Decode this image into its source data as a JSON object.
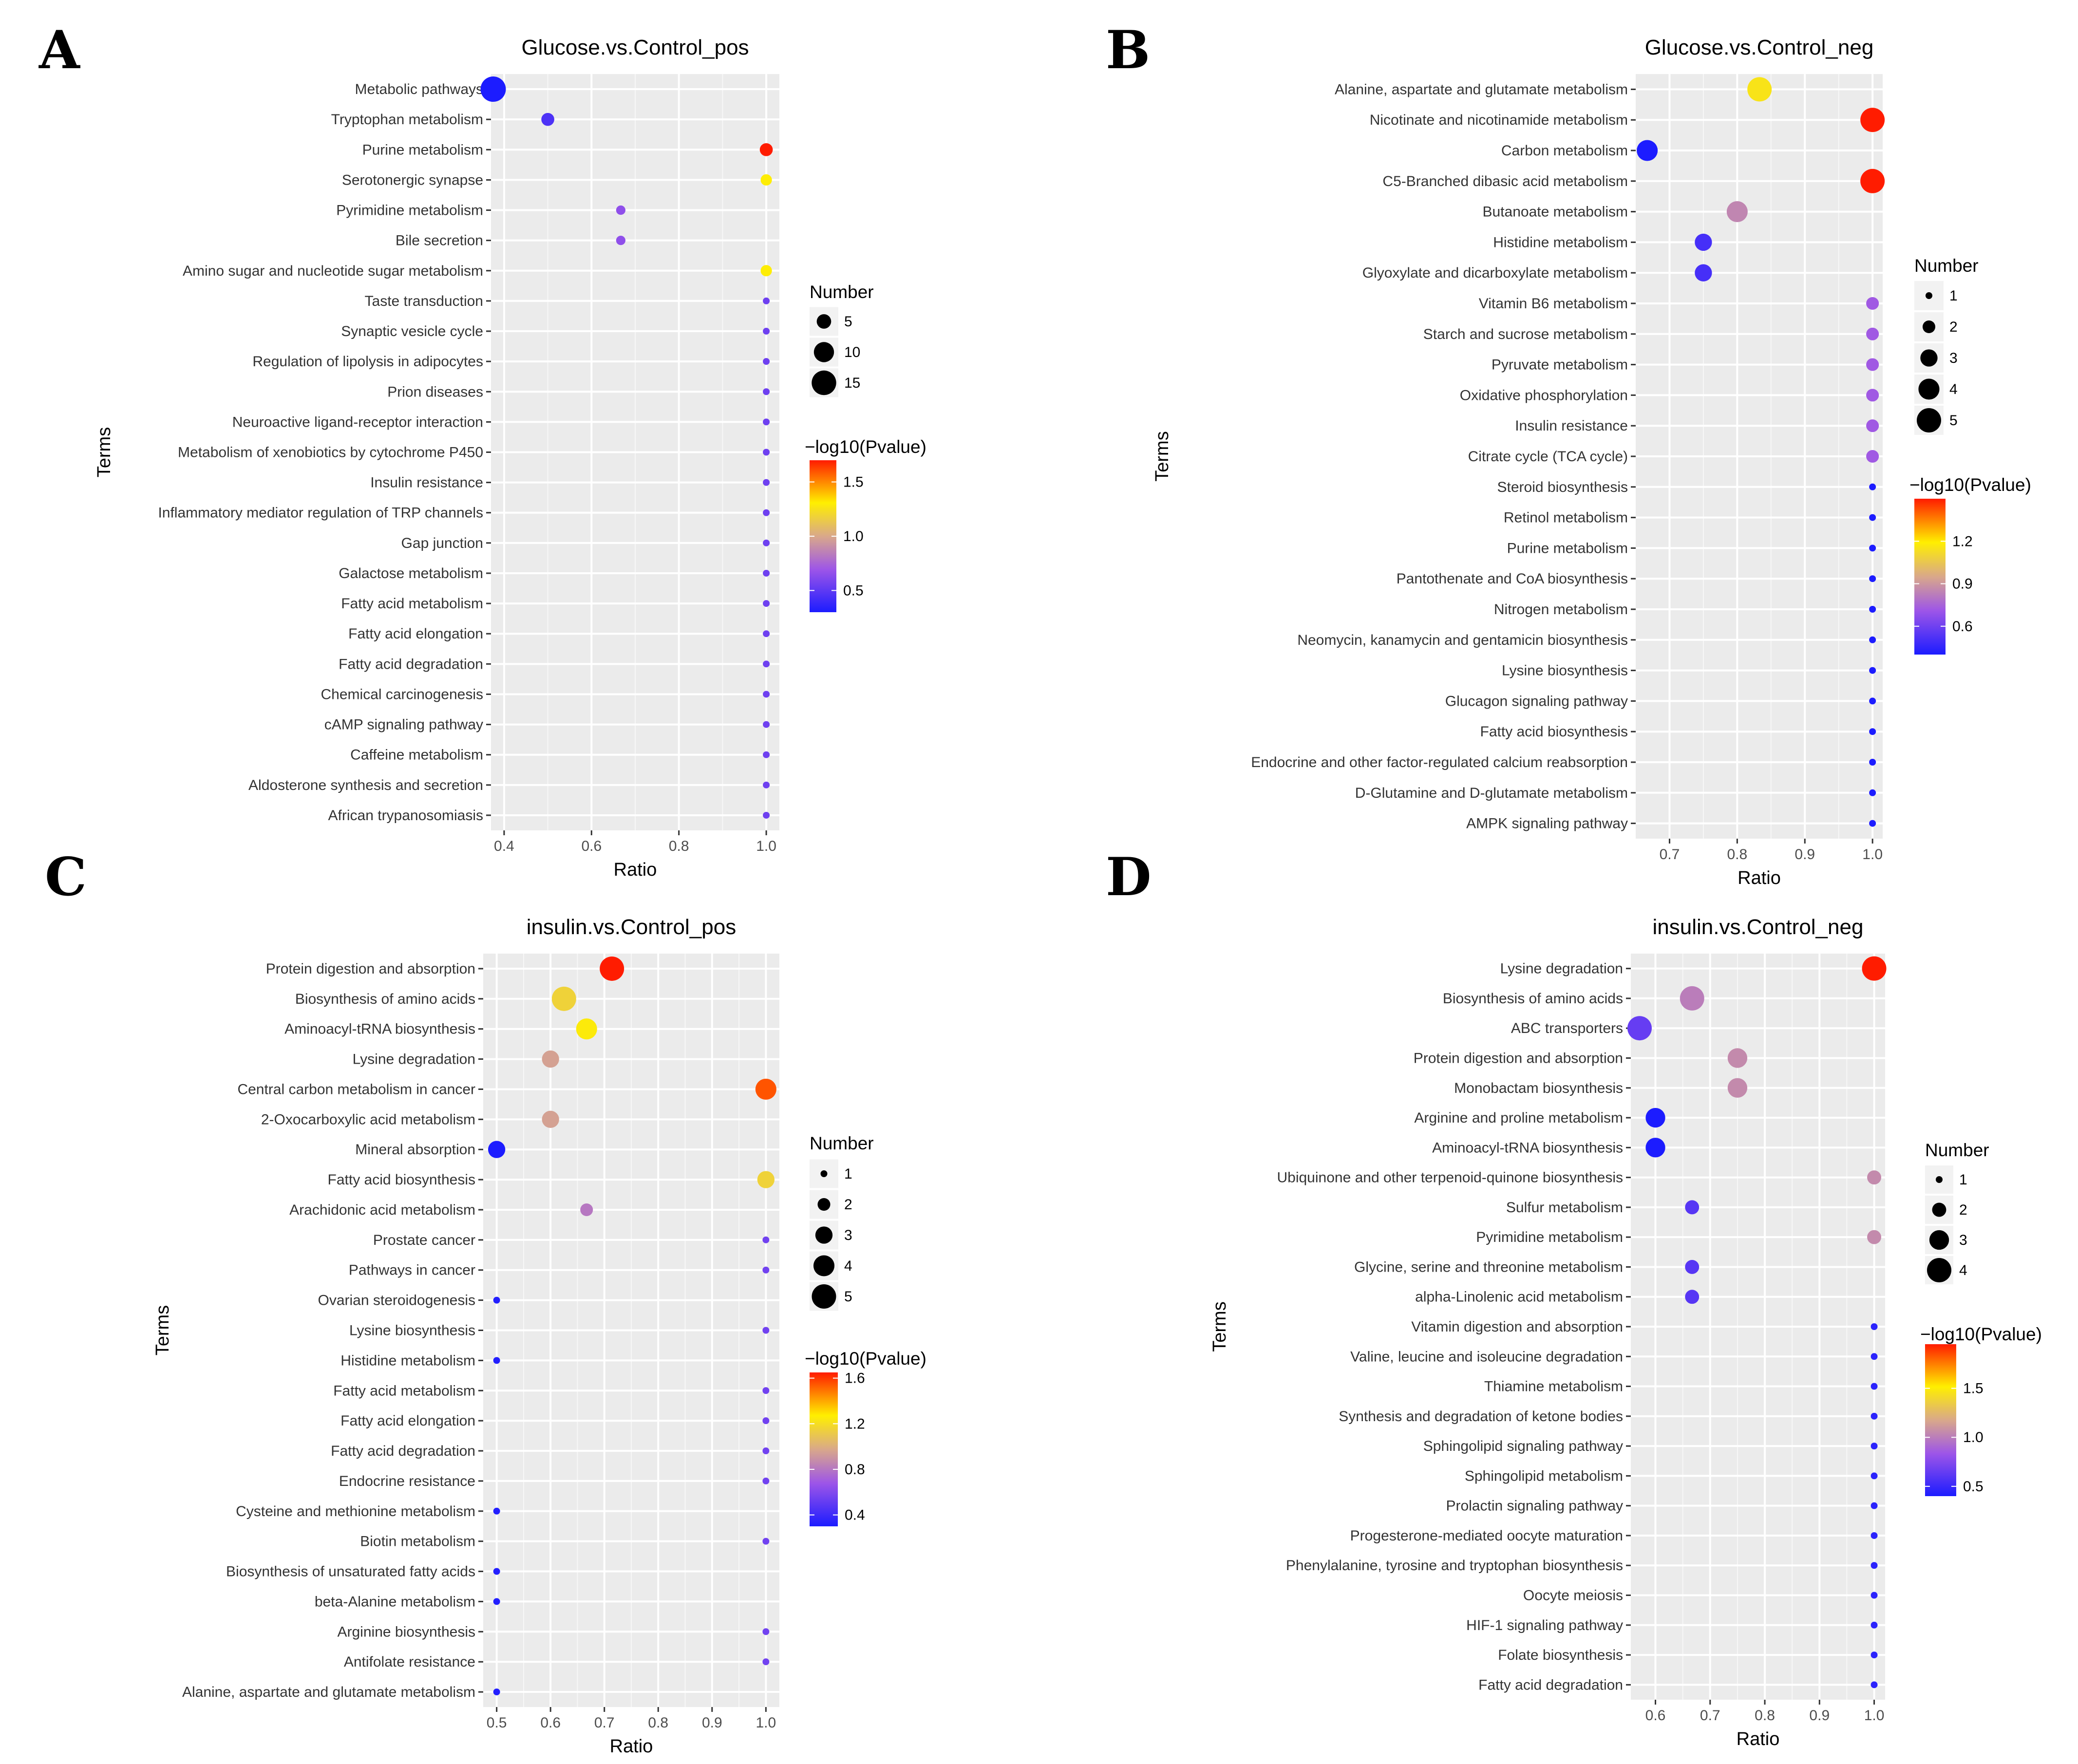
{
  "chart_data": [
    {
      "panel": "A",
      "type": "scatter",
      "title": "Glucose.vs.Control_pos",
      "xlabel": "Ratio",
      "ylabel": "Terms",
      "xlim": [
        0.37,
        1.03
      ],
      "xticks": [
        0.4,
        0.6,
        0.8,
        1.0
      ],
      "xtick_labels": [
        "0.4",
        "0.6",
        "0.8",
        "1.0"
      ],
      "size_legend": {
        "title": "Number",
        "values": [
          5,
          10,
          15
        ],
        "labels": [
          "5",
          "10",
          "15"
        ]
      },
      "color_legend": {
        "title": "−log10(Pvalue)",
        "min": 0.3,
        "max": 1.7,
        "ticks": [
          0.5,
          1.0,
          1.5
        ],
        "labels": [
          "0.5",
          "1.0",
          "1.5"
        ]
      },
      "points": [
        {
          "term": "Metabolic pathways",
          "ratio": 0.375,
          "number": 16,
          "logp": 0.3
        },
        {
          "term": "Tryptophan metabolism",
          "ratio": 0.5,
          "number": 4,
          "logp": 0.45
        },
        {
          "term": "Purine metabolism",
          "ratio": 1.0,
          "number": 4,
          "logp": 1.7
        },
        {
          "term": "Serotonergic synapse",
          "ratio": 1.0,
          "number": 3,
          "logp": 1.3
        },
        {
          "term": "Pyrimidine metabolism",
          "ratio": 0.667,
          "number": 2,
          "logp": 0.65
        },
        {
          "term": "Bile secretion",
          "ratio": 0.667,
          "number": 2,
          "logp": 0.65
        },
        {
          "term": "Amino sugar and nucleotide sugar metabolism",
          "ratio": 1.0,
          "number": 3,
          "logp": 1.3
        },
        {
          "term": "Taste transduction",
          "ratio": 1.0,
          "number": 1,
          "logp": 0.55
        },
        {
          "term": "Synaptic vesicle cycle",
          "ratio": 1.0,
          "number": 1,
          "logp": 0.55
        },
        {
          "term": "Regulation of lipolysis in adipocytes",
          "ratio": 1.0,
          "number": 1,
          "logp": 0.55
        },
        {
          "term": "Prion diseases",
          "ratio": 1.0,
          "number": 1,
          "logp": 0.55
        },
        {
          "term": "Neuroactive ligand-receptor interaction",
          "ratio": 1.0,
          "number": 1,
          "logp": 0.55
        },
        {
          "term": "Metabolism of xenobiotics by cytochrome P450",
          "ratio": 1.0,
          "number": 1,
          "logp": 0.55
        },
        {
          "term": "Insulin resistance",
          "ratio": 1.0,
          "number": 1,
          "logp": 0.55
        },
        {
          "term": "Inflammatory mediator regulation of TRP channels",
          "ratio": 1.0,
          "number": 1,
          "logp": 0.55
        },
        {
          "term": "Gap junction",
          "ratio": 1.0,
          "number": 1,
          "logp": 0.55
        },
        {
          "term": "Galactose metabolism",
          "ratio": 1.0,
          "number": 1,
          "logp": 0.55
        },
        {
          "term": "Fatty acid metabolism",
          "ratio": 1.0,
          "number": 1,
          "logp": 0.55
        },
        {
          "term": "Fatty acid elongation",
          "ratio": 1.0,
          "number": 1,
          "logp": 0.55
        },
        {
          "term": "Fatty acid degradation",
          "ratio": 1.0,
          "number": 1,
          "logp": 0.55
        },
        {
          "term": "Chemical carcinogenesis",
          "ratio": 1.0,
          "number": 1,
          "logp": 0.55
        },
        {
          "term": "cAMP signaling pathway",
          "ratio": 1.0,
          "number": 1,
          "logp": 0.55
        },
        {
          "term": "Caffeine metabolism",
          "ratio": 1.0,
          "number": 1,
          "logp": 0.55
        },
        {
          "term": "Aldosterone synthesis and secretion",
          "ratio": 1.0,
          "number": 1,
          "logp": 0.55
        },
        {
          "term": "African trypanosomiasis",
          "ratio": 1.0,
          "number": 1,
          "logp": 0.55
        }
      ]
    },
    {
      "panel": "B",
      "type": "scatter",
      "title": "Glucose.vs.Control_neg",
      "xlabel": "Ratio",
      "ylabel": "Terms",
      "xlim": [
        0.65,
        1.015
      ],
      "xticks": [
        0.7,
        0.8,
        0.9,
        1.0
      ],
      "xtick_labels": [
        "0.7",
        "0.8",
        "0.9",
        "1.0"
      ],
      "size_legend": {
        "title": "Number",
        "values": [
          1,
          2,
          3,
          4,
          5
        ],
        "labels": [
          "1",
          "2",
          "3",
          "4",
          "5"
        ]
      },
      "color_legend": {
        "title": "−log10(Pvalue)",
        "min": 0.4,
        "max": 1.5,
        "ticks": [
          0.6,
          0.9,
          1.2
        ],
        "labels": [
          "0.6",
          "0.9",
          "1.2"
        ]
      },
      "points": [
        {
          "term": "Alanine, aspartate and glutamate metabolism",
          "ratio": 0.833,
          "number": 5,
          "logp": 1.15
        },
        {
          "term": "Nicotinate and nicotinamide metabolism",
          "ratio": 1.0,
          "number": 5,
          "logp": 1.5
        },
        {
          "term": "Carbon metabolism",
          "ratio": 0.667,
          "number": 4,
          "logp": 0.4
        },
        {
          "term": "C5-Branched dibasic acid metabolism",
          "ratio": 1.0,
          "number": 5,
          "logp": 1.5
        },
        {
          "term": "Butanoate metabolism",
          "ratio": 0.8,
          "number": 4,
          "logp": 0.85
        },
        {
          "term": "Histidine metabolism",
          "ratio": 0.75,
          "number": 3,
          "logp": 0.5
        },
        {
          "term": "Glyoxylate and dicarboxylate metabolism",
          "ratio": 0.75,
          "number": 3,
          "logp": 0.5
        },
        {
          "term": "Vitamin B6 metabolism",
          "ratio": 1.0,
          "number": 2,
          "logp": 0.72
        },
        {
          "term": "Starch and sucrose metabolism",
          "ratio": 1.0,
          "number": 2,
          "logp": 0.72
        },
        {
          "term": "Pyruvate metabolism",
          "ratio": 1.0,
          "number": 2,
          "logp": 0.72
        },
        {
          "term": "Oxidative phosphorylation",
          "ratio": 1.0,
          "number": 2,
          "logp": 0.72
        },
        {
          "term": "Insulin resistance",
          "ratio": 1.0,
          "number": 2,
          "logp": 0.72
        },
        {
          "term": "Citrate cycle (TCA cycle)",
          "ratio": 1.0,
          "number": 2,
          "logp": 0.72
        },
        {
          "term": "Steroid biosynthesis",
          "ratio": 1.0,
          "number": 1,
          "logp": 0.4
        },
        {
          "term": "Retinol metabolism",
          "ratio": 1.0,
          "number": 1,
          "logp": 0.4
        },
        {
          "term": "Purine metabolism",
          "ratio": 1.0,
          "number": 1,
          "logp": 0.4
        },
        {
          "term": "Pantothenate and CoA biosynthesis",
          "ratio": 1.0,
          "number": 1,
          "logp": 0.4
        },
        {
          "term": "Nitrogen metabolism",
          "ratio": 1.0,
          "number": 1,
          "logp": 0.4
        },
        {
          "term": "Neomycin, kanamycin and gentamicin biosynthesis",
          "ratio": 1.0,
          "number": 1,
          "logp": 0.4
        },
        {
          "term": "Lysine biosynthesis",
          "ratio": 1.0,
          "number": 1,
          "logp": 0.4
        },
        {
          "term": "Glucagon signaling pathway",
          "ratio": 1.0,
          "number": 1,
          "logp": 0.4
        },
        {
          "term": "Fatty acid biosynthesis",
          "ratio": 1.0,
          "number": 1,
          "logp": 0.4
        },
        {
          "term": "Endocrine and other factor-regulated calcium reabsorption",
          "ratio": 1.0,
          "number": 1,
          "logp": 0.4
        },
        {
          "term": "D-Glutamine and D-glutamate metabolism",
          "ratio": 1.0,
          "number": 1,
          "logp": 0.4
        },
        {
          "term": "AMPK signaling pathway",
          "ratio": 1.0,
          "number": 1,
          "logp": 0.4
        }
      ]
    },
    {
      "panel": "C",
      "type": "scatter",
      "title": "insulin.vs.Control_pos",
      "xlabel": "Ratio",
      "ylabel": "Terms",
      "xlim": [
        0.475,
        1.025
      ],
      "xticks": [
        0.5,
        0.6,
        0.7,
        0.8,
        0.9,
        1.0
      ],
      "xtick_labels": [
        "0.5",
        "0.6",
        "0.7",
        "0.8",
        "0.9",
        "1.0"
      ],
      "size_legend": {
        "title": "Number",
        "values": [
          1,
          2,
          3,
          4,
          5
        ],
        "labels": [
          "1",
          "2",
          "3",
          "4",
          "5"
        ]
      },
      "color_legend": {
        "title": "−log10(Pvalue)",
        "min": 0.3,
        "max": 1.65,
        "ticks": [
          0.4,
          0.8,
          1.2,
          1.6
        ],
        "labels": [
          "0.4",
          "0.8",
          "1.2",
          "1.6"
        ]
      },
      "points": [
        {
          "term": "Protein digestion and absorption",
          "ratio": 0.714,
          "number": 5,
          "logp": 1.65
        },
        {
          "term": "Biosynthesis of amino acids",
          "ratio": 0.625,
          "number": 5,
          "logp": 1.15
        },
        {
          "term": "Aminoacyl-tRNA biosynthesis",
          "ratio": 0.667,
          "number": 4,
          "logp": 1.25
        },
        {
          "term": "Lysine degradation",
          "ratio": 0.6,
          "number": 3,
          "logp": 0.95
        },
        {
          "term": "Central carbon metabolism in cancer",
          "ratio": 1.0,
          "number": 4,
          "logp": 1.55
        },
        {
          "term": "2-Oxocarboxylic acid metabolism",
          "ratio": 0.6,
          "number": 3,
          "logp": 0.95
        },
        {
          "term": "Mineral absorption",
          "ratio": 0.5,
          "number": 3,
          "logp": 0.3
        },
        {
          "term": "Fatty acid biosynthesis",
          "ratio": 1.0,
          "number": 3,
          "logp": 1.15
        },
        {
          "term": "Arachidonic acid metabolism",
          "ratio": 0.667,
          "number": 2,
          "logp": 0.8
        },
        {
          "term": "Prostate cancer",
          "ratio": 1.0,
          "number": 1,
          "logp": 0.55
        },
        {
          "term": "Pathways in cancer",
          "ratio": 1.0,
          "number": 1,
          "logp": 0.55
        },
        {
          "term": "Ovarian steroidogenesis",
          "ratio": 0.5,
          "number": 1,
          "logp": 0.32
        },
        {
          "term": "Lysine biosynthesis",
          "ratio": 1.0,
          "number": 1,
          "logp": 0.55
        },
        {
          "term": "Histidine metabolism",
          "ratio": 0.5,
          "number": 1,
          "logp": 0.32
        },
        {
          "term": "Fatty acid metabolism",
          "ratio": 1.0,
          "number": 1,
          "logp": 0.55
        },
        {
          "term": "Fatty acid elongation",
          "ratio": 1.0,
          "number": 1,
          "logp": 0.55
        },
        {
          "term": "Fatty acid degradation",
          "ratio": 1.0,
          "number": 1,
          "logp": 0.55
        },
        {
          "term": "Endocrine resistance",
          "ratio": 1.0,
          "number": 1,
          "logp": 0.55
        },
        {
          "term": "Cysteine and methionine metabolism",
          "ratio": 0.5,
          "number": 1,
          "logp": 0.32
        },
        {
          "term": "Biotin metabolism",
          "ratio": 1.0,
          "number": 1,
          "logp": 0.55
        },
        {
          "term": "Biosynthesis of unsaturated fatty acids",
          "ratio": 0.5,
          "number": 1,
          "logp": 0.32
        },
        {
          "term": "beta-Alanine metabolism",
          "ratio": 0.5,
          "number": 1,
          "logp": 0.32
        },
        {
          "term": "Arginine biosynthesis",
          "ratio": 1.0,
          "number": 1,
          "logp": 0.55
        },
        {
          "term": "Antifolate resistance",
          "ratio": 1.0,
          "number": 1,
          "logp": 0.55
        },
        {
          "term": "Alanine, aspartate and glutamate metabolism",
          "ratio": 0.5,
          "number": 1,
          "logp": 0.32
        }
      ]
    },
    {
      "panel": "D",
      "type": "scatter",
      "title": "insulin.vs.Control_neg",
      "xlabel": "Ratio",
      "ylabel": "Terms",
      "xlim": [
        0.555,
        1.02
      ],
      "xticks": [
        0.6,
        0.7,
        0.8,
        0.9,
        1.0
      ],
      "xtick_labels": [
        "0.6",
        "0.7",
        "0.8",
        "0.9",
        "1.0"
      ],
      "size_legend": {
        "title": "Number",
        "values": [
          1,
          2,
          3,
          4
        ],
        "labels": [
          "1",
          "2",
          "3",
          "4"
        ]
      },
      "color_legend": {
        "title": "−log10(Pvalue)",
        "min": 0.4,
        "max": 1.95,
        "ticks": [
          0.5,
          1.0,
          1.5
        ],
        "labels": [
          "0.5",
          "1.0",
          "1.5"
        ]
      },
      "points": [
        {
          "term": "Lysine degradation",
          "ratio": 1.0,
          "number": 4,
          "logp": 1.95
        },
        {
          "term": "Biosynthesis of amino acids",
          "ratio": 0.667,
          "number": 4,
          "logp": 1.0
        },
        {
          "term": "ABC transporters",
          "ratio": 0.571,
          "number": 4,
          "logp": 0.65
        },
        {
          "term": "Protein digestion and absorption",
          "ratio": 0.75,
          "number": 3,
          "logp": 1.05
        },
        {
          "term": "Monobactam biosynthesis",
          "ratio": 0.75,
          "number": 3,
          "logp": 1.05
        },
        {
          "term": "Arginine and proline metabolism",
          "ratio": 0.6,
          "number": 3,
          "logp": 0.4
        },
        {
          "term": "Aminoacyl-tRNA biosynthesis",
          "ratio": 0.6,
          "number": 3,
          "logp": 0.4
        },
        {
          "term": "Ubiquinone and other terpenoid-quinone biosynthesis",
          "ratio": 1.0,
          "number": 2,
          "logp": 1.05
        },
        {
          "term": "Sulfur metabolism",
          "ratio": 0.667,
          "number": 2,
          "logp": 0.6
        },
        {
          "term": "Pyrimidine metabolism",
          "ratio": 1.0,
          "number": 2,
          "logp": 1.05
        },
        {
          "term": "Glycine, serine and threonine metabolism",
          "ratio": 0.667,
          "number": 2,
          "logp": 0.6
        },
        {
          "term": "alpha-Linolenic acid metabolism",
          "ratio": 0.667,
          "number": 2,
          "logp": 0.6
        },
        {
          "term": "Vitamin digestion and absorption",
          "ratio": 1.0,
          "number": 1,
          "logp": 0.45
        },
        {
          "term": "Valine, leucine and isoleucine degradation",
          "ratio": 1.0,
          "number": 1,
          "logp": 0.45
        },
        {
          "term": "Thiamine metabolism",
          "ratio": 1.0,
          "number": 1,
          "logp": 0.45
        },
        {
          "term": "Synthesis and degradation of ketone bodies",
          "ratio": 1.0,
          "number": 1,
          "logp": 0.45
        },
        {
          "term": "Sphingolipid signaling pathway",
          "ratio": 1.0,
          "number": 1,
          "logp": 0.45
        },
        {
          "term": "Sphingolipid metabolism",
          "ratio": 1.0,
          "number": 1,
          "logp": 0.45
        },
        {
          "term": "Prolactin signaling pathway",
          "ratio": 1.0,
          "number": 1,
          "logp": 0.45
        },
        {
          "term": "Progesterone-mediated oocyte maturation",
          "ratio": 1.0,
          "number": 1,
          "logp": 0.45
        },
        {
          "term": "Phenylalanine, tyrosine and tryptophan biosynthesis",
          "ratio": 1.0,
          "number": 1,
          "logp": 0.45
        },
        {
          "term": "Oocyte meiosis",
          "ratio": 1.0,
          "number": 1,
          "logp": 0.45
        },
        {
          "term": "HIF-1 signaling pathway",
          "ratio": 1.0,
          "number": 1,
          "logp": 0.45
        },
        {
          "term": "Folate biosynthesis",
          "ratio": 1.0,
          "number": 1,
          "logp": 0.45
        },
        {
          "term": "Fatty acid degradation",
          "ratio": 1.0,
          "number": 1,
          "logp": 0.45
        }
      ]
    }
  ]
}
